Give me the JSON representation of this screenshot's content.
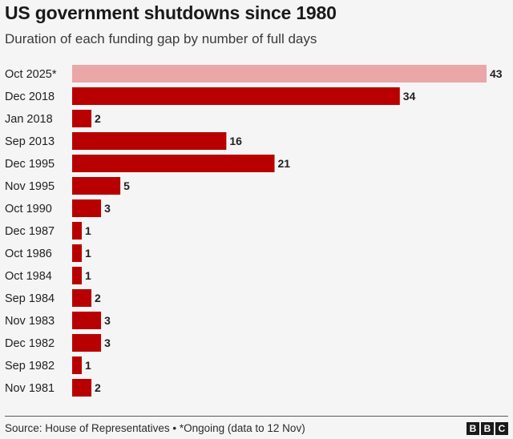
{
  "title": "US government shutdowns since 1980",
  "subtitle": "Duration of each funding gap by number of full days",
  "footer": {
    "source": "Source: House of Representatives • *Ongoing (data to 12 Nov)",
    "logo_letters": [
      "B",
      "B",
      "C"
    ]
  },
  "colors": {
    "bar": "#b80000",
    "bar_highlight": "#eba6a8",
    "label_text": "#222222",
    "value_text": "#222222"
  },
  "chart_data": {
    "type": "bar",
    "orientation": "horizontal",
    "categories": [
      "Oct 2025*",
      "Dec 2018",
      "Jan 2018",
      "Sep 2013",
      "Dec 1995",
      "Nov 1995",
      "Oct 1990",
      "Dec 1987",
      "Oct 1986",
      "Oct 1984",
      "Sep 1984",
      "Nov 1983",
      "Dec 1982",
      "Sep 1982",
      "Nov 1981"
    ],
    "values": [
      43,
      34,
      2,
      16,
      21,
      5,
      3,
      1,
      1,
      1,
      2,
      3,
      3,
      1,
      2
    ],
    "highlight_index": 0,
    "xlim": [
      0,
      43
    ],
    "title": "US government shutdowns since 1980",
    "subtitle": "Duration of each funding gap by number of full days",
    "xlabel": "",
    "ylabel": "",
    "grid": false,
    "legend": "none",
    "data_labels": true
  }
}
